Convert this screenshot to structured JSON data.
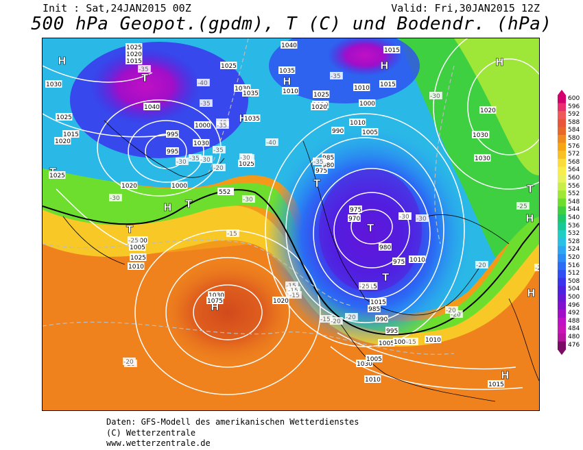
{
  "header": {
    "init": "Init : Sat,24JAN2015 00Z",
    "valid": "Valid: Fri,30JAN2015 12Z",
    "title": "500 hPa Geopot.(gpdm), T (C) und Bodendr. (hPa)"
  },
  "footer": {
    "line1": "Daten: GFS-Modell des amerikanischen Wetterdienstes",
    "line2": "(C) Wetterzentrale",
    "line3": "www.wetterzentrale.de"
  },
  "color_scale": {
    "labels": [
      "600",
      "596",
      "592",
      "588",
      "584",
      "580",
      "576",
      "572",
      "568",
      "564",
      "560",
      "556",
      "552",
      "548",
      "544",
      "540",
      "536",
      "532",
      "528",
      "524",
      "520",
      "516",
      "512",
      "508",
      "504",
      "500",
      "496",
      "492",
      "488",
      "484",
      "480",
      "476"
    ],
    "colors": [
      "#d4006e",
      "#e8306e",
      "#ee5a5a",
      "#e8553a",
      "#e8682a",
      "#ef8a1e",
      "#f6a612",
      "#f9c024",
      "#fadc3a",
      "#f7ee4e",
      "#e7f25c",
      "#c8ee4a",
      "#9ee637",
      "#6ede2e",
      "#3ed040",
      "#1ec86a",
      "#18c896",
      "#20cec4",
      "#2ac0e6",
      "#2aa6f2",
      "#2a8af6",
      "#2a6cf4",
      "#304ef2",
      "#3a34ec",
      "#4c22e0",
      "#6618d4",
      "#8210cc",
      "#a20ec8",
      "#c010c4",
      "#c814b4",
      "#b4149e",
      "#7a0c66"
    ]
  },
  "map": {
    "pressure_labels": [
      "1025",
      "1020",
      "1015",
      "1030",
      "1040",
      "1015",
      "1025",
      "1035",
      "1010",
      "1030",
      "1035",
      "1010",
      "1020",
      "1015",
      "1025",
      "1020",
      "1040",
      "1035",
      "1000",
      "1025",
      "1010",
      "1000",
      "995",
      "990",
      "1005",
      "1030",
      "1025",
      "985",
      "975",
      "980",
      "995",
      "1000",
      "975",
      "970",
      "980",
      "975",
      "1010",
      "1000",
      "1005",
      "1025",
      "1030",
      "1075",
      "1020",
      "1010",
      "1015",
      "1030",
      "1005",
      "1010",
      "1015",
      "985",
      "990",
      "995",
      "1000",
      "1005",
      "1010",
      "1015",
      "1020",
      "1020",
      "1025",
      "1030",
      "1015",
      "1030",
      "1025",
      "1020"
    ],
    "temperature_labels": [
      "-35",
      "-35",
      "-40",
      "-40",
      "-35",
      "-30",
      "-35",
      "-40",
      "-20",
      "-30",
      "-35",
      "-30",
      "-25",
      "-35",
      "-30",
      "-30",
      "-25",
      "-20",
      "-15",
      "-15",
      "-15",
      "-15",
      "-20",
      "-15",
      "-20",
      "-20",
      "-25",
      "-30",
      "-30",
      "-20",
      "-35",
      "-30",
      "-30",
      "-25",
      "-20",
      "-15",
      "-15",
      "-20",
      "-20"
    ],
    "geopotential_label": "552",
    "high_marker": "H",
    "low_marker": "T"
  }
}
